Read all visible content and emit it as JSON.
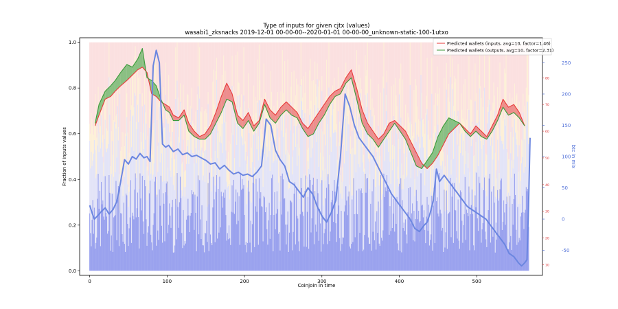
{
  "chart_data": {
    "type": "line",
    "title": "Type of inputs for given cjtx (values)",
    "subtitle": "wasabi1_zksnacks 2019-12-01 00-00-00--2020-01-01 00-00-00_unknown-static-100-1utxo",
    "xlabel": "Coinjoin in time",
    "ylabel": "Fraction of inputs values",
    "ylabel_right": "btc in mix",
    "x_ticks": [
      "0",
      "100",
      "200",
      "300",
      "400",
      "500"
    ],
    "y_ticks": [
      "0.0",
      "0.2",
      "0.4",
      "0.6",
      "0.8",
      "1.0"
    ],
    "right_ticks": [
      "-50",
      "0",
      "50",
      "100",
      "150",
      "200",
      "250"
    ],
    "inner_right_ticks": [
      "10",
      "20",
      "30",
      "40",
      "50",
      "60",
      "70",
      "80"
    ],
    "xlim": [
      -13,
      585
    ],
    "ylim": [
      -0.02,
      1.02
    ],
    "right_ylim": [
      -90,
      290
    ],
    "inner_right_ylim": [
      6,
      95
    ],
    "legend_position": "top-right",
    "legend": [
      "Predicted wallets (inputs, avg=10, factor=1.46)",
      "Predicted wallets (outputs, avg=10, factor=2.31)"
    ],
    "series": [
      {
        "name": "Predicted wallets (inputs, avg=10, factor=1.46)",
        "color": "#e83a3a",
        "x": [
          7,
          12,
          20,
          27,
          33,
          40,
          48,
          55,
          62,
          68,
          74,
          80,
          86,
          92,
          98,
          103,
          108,
          115,
          122,
          128,
          135,
          142,
          149,
          156,
          163,
          170,
          177,
          184,
          191,
          198,
          205,
          212,
          219,
          226,
          233,
          240,
          247,
          254,
          261,
          268,
          275,
          282,
          289,
          296,
          303,
          310,
          317,
          324,
          331,
          338,
          345,
          352,
          359,
          366,
          373,
          380,
          387,
          394,
          401,
          408,
          415,
          422,
          429,
          436,
          443,
          450,
          457,
          464,
          471,
          478,
          485,
          492,
          499,
          506,
          513,
          520,
          527,
          534,
          541,
          548,
          555,
          562
        ],
        "y": [
          62,
          66,
          72,
          73,
          75,
          77,
          79,
          81,
          83,
          84,
          82,
          74,
          73,
          71,
          70,
          69,
          66,
          65,
          68,
          63,
          60,
          58,
          59,
          62,
          67,
          73,
          78,
          74,
          66,
          64,
          67,
          62,
          64,
          72,
          68,
          66,
          69,
          71,
          69,
          67,
          63,
          61,
          64,
          67,
          70,
          73,
          75,
          76,
          80,
          83,
          76,
          68,
          63,
          60,
          57,
          59,
          63,
          64,
          62,
          60,
          56,
          52,
          48,
          46,
          48,
          51,
          55,
          59,
          61,
          63,
          61,
          59,
          62,
          60,
          58,
          62,
          66,
          72,
          69,
          70,
          67,
          62
        ]
      },
      {
        "name": "Predicted wallets (outputs, avg=10, factor=2.31)",
        "color": "#3a9a3a",
        "x": [
          7,
          12,
          20,
          27,
          33,
          40,
          48,
          55,
          62,
          68,
          74,
          80,
          86,
          92,
          98,
          103,
          108,
          115,
          122,
          128,
          135,
          142,
          149,
          156,
          163,
          170,
          177,
          184,
          191,
          198,
          205,
          212,
          219,
          226,
          233,
          240,
          247,
          254,
          261,
          268,
          275,
          282,
          289,
          296,
          303,
          310,
          317,
          324,
          331,
          338,
          345,
          352,
          359,
          366,
          373,
          380,
          387,
          394,
          401,
          408,
          415,
          422,
          429,
          436,
          443,
          450,
          457,
          464,
          471,
          478,
          485,
          492,
          499,
          506,
          513,
          520,
          527,
          534,
          541,
          548,
          555,
          562
        ],
        "y": [
          63,
          70,
          75,
          77,
          79,
          82,
          85,
          84,
          87,
          91,
          80,
          79,
          77,
          72,
          68,
          67,
          64,
          64,
          66,
          60,
          58,
          57,
          57,
          59,
          63,
          67,
          72,
          71,
          63,
          61,
          64,
          60,
          63,
          70,
          65,
          63,
          66,
          68,
          66,
          65,
          61,
          58,
          59,
          63,
          66,
          70,
          73,
          74,
          78,
          80,
          72,
          63,
          59,
          57,
          54,
          57,
          60,
          63,
          60,
          57,
          52,
          47,
          46,
          49,
          52,
          58,
          62,
          65,
          64,
          63,
          60,
          58,
          60,
          58,
          57,
          60,
          64,
          69,
          66,
          67,
          65,
          62
        ]
      },
      {
        "name": "",
        "color": "#6b86e0",
        "x": [
          0,
          3,
          6,
          10,
          15,
          20,
          25,
          30,
          35,
          40,
          45,
          50,
          55,
          60,
          65,
          70,
          74,
          78,
          82,
          86,
          90,
          94,
          98,
          102,
          108,
          114,
          120,
          126,
          132,
          138,
          144,
          150,
          156,
          162,
          168,
          174,
          180,
          186,
          192,
          198,
          204,
          210,
          216,
          222,
          228,
          234,
          240,
          246,
          252,
          258,
          264,
          270,
          276,
          282,
          288,
          294,
          300,
          306,
          312,
          318,
          324,
          330,
          336,
          342,
          348,
          354,
          360,
          366,
          372,
          378,
          384,
          390,
          396,
          402,
          408,
          414,
          420,
          426,
          432,
          436,
          440,
          444,
          448,
          452,
          458,
          464,
          470,
          476,
          482,
          488,
          494,
          500,
          506,
          512,
          518,
          524,
          530,
          536,
          542,
          548,
          554,
          558,
          562,
          565,
          567,
          569
        ],
        "y": [
          22,
          10,
          0,
          5,
          12,
          18,
          8,
          15,
          28,
          60,
          95,
          88,
          100,
          96,
          105,
          98,
          100,
          92,
          245,
          270,
          250,
          120,
          115,
          118,
          108,
          112,
          103,
          106,
          100,
          102,
          98,
          94,
          88,
          90,
          80,
          86,
          78,
          72,
          75,
          70,
          72,
          68,
          75,
          85,
          160,
          150,
          110,
          95,
          85,
          60,
          55,
          45,
          35,
          50,
          40,
          20,
          5,
          -5,
          10,
          30,
          100,
          200,
          180,
          150,
          130,
          120,
          110,
          100,
          85,
          70,
          55,
          40,
          30,
          20,
          10,
          0,
          -15,
          -20,
          -10,
          -5,
          10,
          30,
          80,
          60,
          70,
          60,
          50,
          40,
          30,
          20,
          15,
          10,
          5,
          0,
          -10,
          -20,
          -30,
          -40,
          -55,
          -60,
          -70,
          -75,
          -70,
          -65,
          20,
          130
        ]
      }
    ]
  }
}
